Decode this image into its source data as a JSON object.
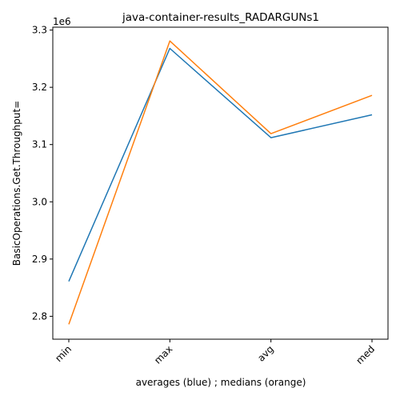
{
  "chart_data": {
    "type": "line",
    "title": "java-container-results_RADARGUNs1",
    "xlabel": "averages (blue) ; medians (orange)",
    "ylabel": "BasicOperations.Get.Throughput=",
    "y_offset_text": "1e6",
    "categories": [
      "min",
      "max",
      "avg",
      "med"
    ],
    "series": [
      {
        "color": "#1f77b4",
        "values": [
          2861000,
          3268000,
          3112000,
          3152000
        ]
      },
      {
        "color": "#ff7f0e",
        "values": [
          2786000,
          3281000,
          3119000,
          3186000
        ]
      }
    ],
    "ylim": [
      2760000,
      3305000
    ],
    "y_ticks": [
      2800000,
      2900000,
      3000000,
      3100000,
      3200000,
      3300000
    ],
    "y_tick_labels": [
      "2.8",
      "2.9",
      "3.0",
      "3.1",
      "3.2",
      "3.3"
    ],
    "grid": false,
    "legend": "none"
  }
}
